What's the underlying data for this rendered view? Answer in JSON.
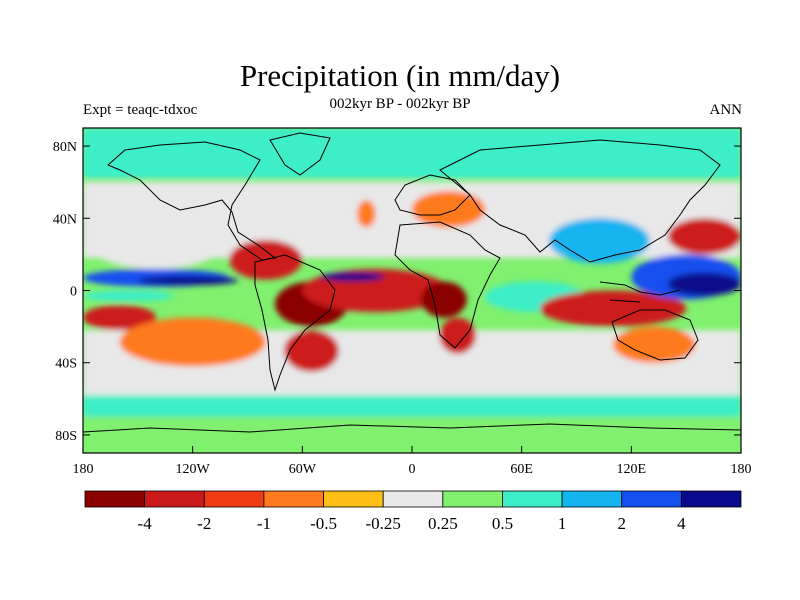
{
  "title": "Precipitation (in mm/day)",
  "subtitle": "002kyr BP - 002kyr BP",
  "left_label": "Expt = teaqc-tdxoc",
  "right_label": "ANN",
  "y_ticks": [
    "80N",
    "40N",
    "0",
    "40S",
    "80S"
  ],
  "x_ticks": [
    "180",
    "120W",
    "60W",
    "0",
    "60E",
    "120E",
    "180"
  ],
  "colorbar": {
    "colors": [
      "#8b0000",
      "#cc1a1a",
      "#f03c14",
      "#ff7a1e",
      "#ffbf14",
      "#e8e8e8",
      "#80f06e",
      "#3ceec8",
      "#14b4f0",
      "#1450f0",
      "#0a0a8c"
    ],
    "labels": [
      "-4",
      "-2",
      "-1",
      "-0.5",
      "-0.25",
      "0.25",
      "0.5",
      "1",
      "2",
      "4"
    ]
  },
  "chart_data": {
    "type": "heatmap",
    "title": "Precipitation (in mm/day)",
    "subtitle": "002kyr BP - 002kyr BP",
    "experiment": "Expt = teaqc-tdxoc",
    "season": "ANN",
    "x_axis": {
      "range": [
        -180,
        180
      ],
      "ticks": [
        "180",
        "120W",
        "60W",
        "0",
        "60E",
        "120E",
        "180"
      ]
    },
    "y_axis": {
      "range": [
        -90,
        90
      ],
      "ticks": [
        "80N",
        "40N",
        "0",
        "40S",
        "80S"
      ]
    },
    "contour_levels": [
      -4,
      -2,
      -1,
      -0.5,
      -0.25,
      0.25,
      0.5,
      1,
      2,
      4
    ],
    "background": "#80f06e",
    "regions": [
      {
        "name": "high-lat-south",
        "value": 0.35,
        "lon": [
          -180,
          180
        ],
        "lat": [
          -90,
          -62
        ]
      },
      {
        "name": "south-ocean-cyan",
        "value": 0.75,
        "lon": [
          -180,
          180
        ],
        "lat": [
          -70,
          -58
        ]
      },
      {
        "name": "south-neutral",
        "value": 0,
        "lon": [
          -180,
          180
        ],
        "lat": [
          -58,
          -22
        ]
      },
      {
        "name": "north-neutral",
        "value": 0,
        "lon": [
          -180,
          180
        ],
        "lat": [
          18,
          60
        ]
      },
      {
        "name": "arctic-mixed",
        "value": 0.75,
        "lon": [
          -180,
          180
        ],
        "lat": [
          62,
          90
        ]
      },
      {
        "name": "pacific-north-neutral",
        "value": 0,
        "lon": [
          -180,
          -100
        ],
        "lat": [
          12,
          45
        ]
      },
      {
        "name": "pacific-south-red",
        "value": -2.5,
        "lon": [
          -180,
          -140
        ],
        "lat": [
          -22,
          -8
        ]
      },
      {
        "name": "pacific-south-orange",
        "value": -0.75,
        "lon": [
          -160,
          -80
        ],
        "lat": [
          -42,
          -15
        ]
      },
      {
        "name": "pacific-itcz-blue",
        "value": 2.5,
        "lon": [
          -180,
          -100
        ],
        "lat": [
          2,
          12
        ]
      },
      {
        "name": "pacific-itcz-navy",
        "value": 5,
        "lon": [
          -150,
          -95
        ],
        "lat": [
          3,
          8
        ]
      },
      {
        "name": "pacific-eq-cyan",
        "value": 0.75,
        "lon": [
          -180,
          -130
        ],
        "lat": [
          -6,
          0
        ]
      },
      {
        "name": "central-america-red",
        "value": -2.5,
        "lon": [
          -100,
          -60
        ],
        "lat": [
          6,
          28
        ]
      },
      {
        "name": "amazon-darkred",
        "value": -5,
        "lon": [
          -75,
          -35
        ],
        "lat": [
          -20,
          5
        ]
      },
      {
        "name": "atlantic-red",
        "value": -2.5,
        "lon": [
          -60,
          20
        ],
        "lat": [
          -12,
          12
        ]
      },
      {
        "name": "atlantic-itcz-navy",
        "value": 5,
        "lon": [
          -50,
          -15
        ],
        "lat": [
          5,
          10
        ]
      },
      {
        "name": "africa-darkred",
        "value": -5,
        "lon": [
          5,
          30
        ],
        "lat": [
          -15,
          5
        ]
      },
      {
        "name": "south-africa-red",
        "value": -2.5,
        "lon": [
          15,
          35
        ],
        "lat": [
          -35,
          -15
        ]
      },
      {
        "name": "south-america-south-red",
        "value": -2.5,
        "lon": [
          -70,
          -40
        ],
        "lat": [
          -45,
          -22
        ]
      },
      {
        "name": "europe-orange",
        "value": -0.75,
        "lon": [
          0,
          40
        ],
        "lat": [
          35,
          55
        ]
      },
      {
        "name": "north-atlantic-orange",
        "value": -0.75,
        "lon": [
          -30,
          -20
        ],
        "lat": [
          35,
          50
        ]
      },
      {
        "name": "indian-ocean-cyan",
        "value": 0.75,
        "lon": [
          40,
          95
        ],
        "lat": [
          -12,
          5
        ]
      },
      {
        "name": "asia-blue",
        "value": 1.5,
        "lon": [
          75,
          130
        ],
        "lat": [
          15,
          40
        ]
      },
      {
        "name": "maritime-red",
        "value": -2.5,
        "lon": [
          70,
          150
        ],
        "lat": [
          -20,
          0
        ]
      },
      {
        "name": "australia-orange",
        "value": -0.75,
        "lon": [
          110,
          155
        ],
        "lat": [
          -40,
          -20
        ]
      },
      {
        "name": "west-pacific-blue",
        "value": 2.5,
        "lon": [
          120,
          180
        ],
        "lat": [
          -5,
          20
        ]
      },
      {
        "name": "west-pacific-navy",
        "value": 5,
        "lon": [
          140,
          180
        ],
        "lat": [
          -3,
          10
        ]
      },
      {
        "name": "north-pacific-red",
        "value": -2.5,
        "lon": [
          140,
          180
        ],
        "lat": [
          20,
          40
        ]
      }
    ]
  }
}
